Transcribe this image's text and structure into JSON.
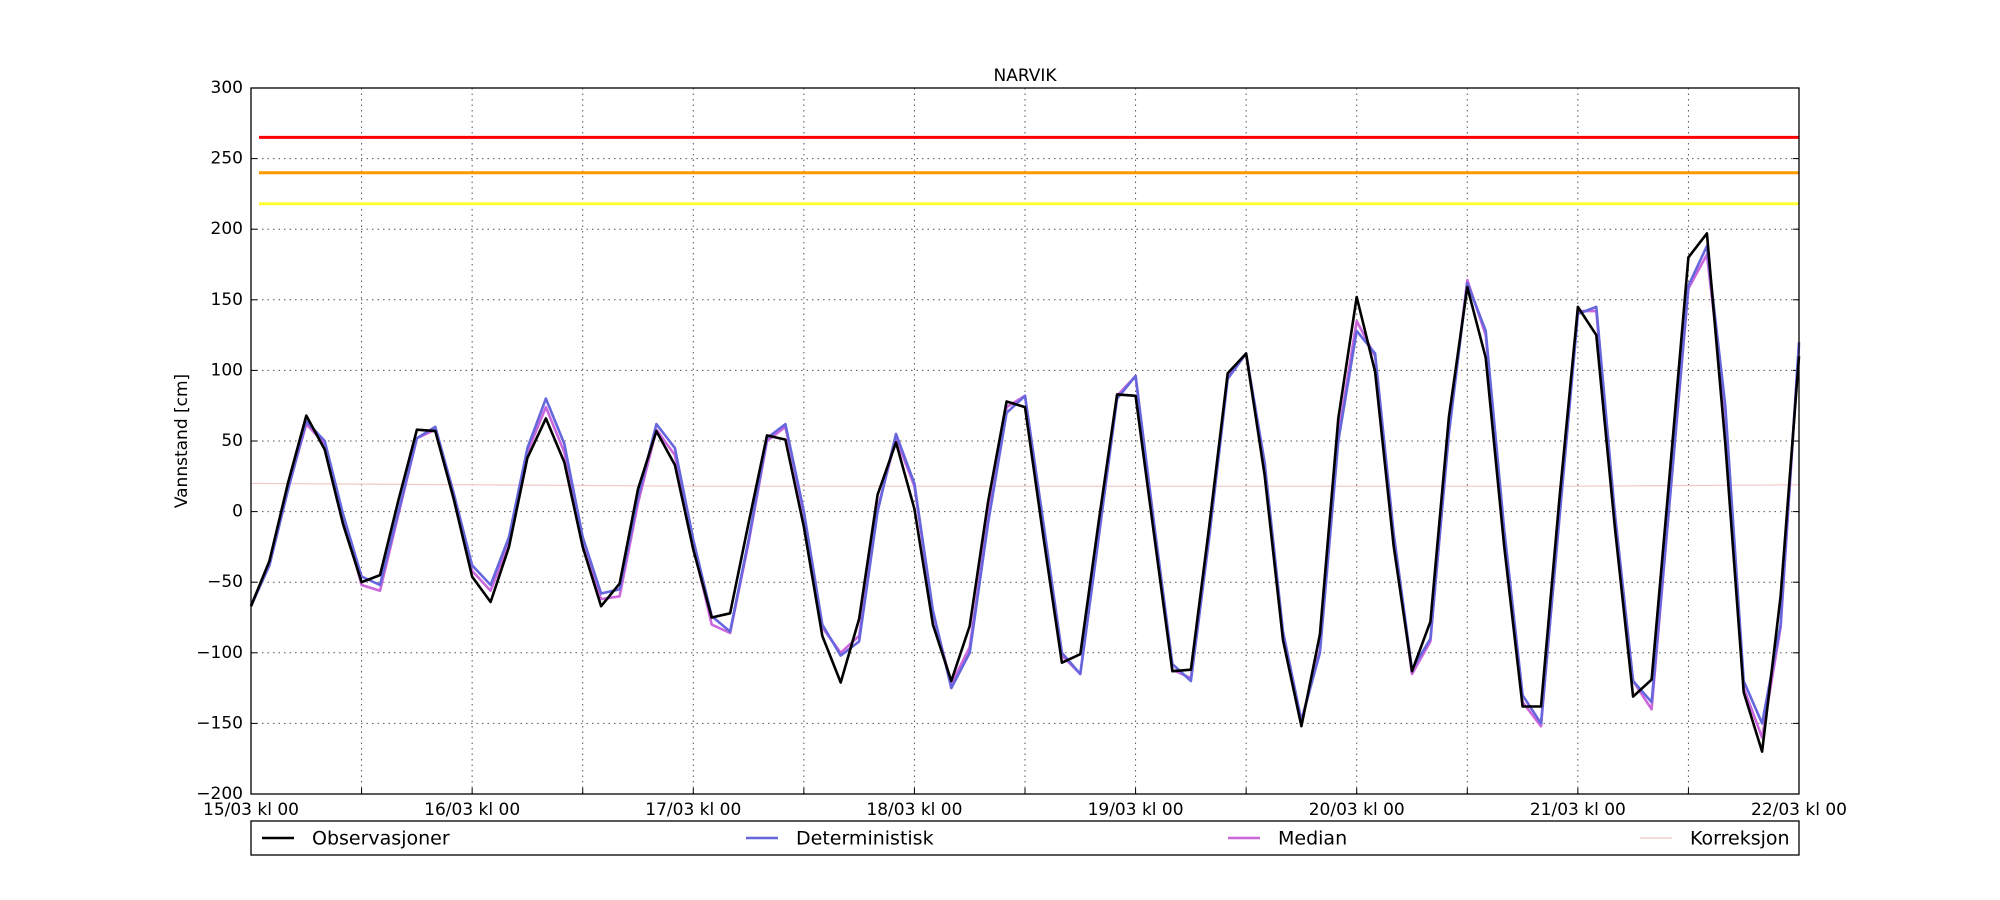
{
  "chart_data": {
    "type": "line",
    "title": "NARVIK",
    "y_label": "Vannstand [cm]",
    "x": [
      0,
      2,
      4,
      6,
      8,
      10,
      12,
      14,
      16,
      18,
      20,
      22,
      24,
      26,
      28,
      30,
      32,
      34,
      36,
      38,
      40,
      42,
      44,
      46,
      48,
      50,
      52,
      54,
      56,
      58,
      60,
      62,
      64,
      66,
      68,
      70,
      72,
      74,
      76,
      78,
      80,
      82,
      84,
      86,
      88,
      90,
      92,
      94,
      96,
      98,
      100,
      102,
      104,
      106,
      108,
      110,
      112,
      114,
      116,
      118,
      120,
      122,
      124,
      126,
      128,
      130,
      132,
      134,
      136,
      138,
      140,
      142,
      144,
      146,
      148,
      150,
      152,
      154,
      156,
      158,
      160,
      162,
      164,
      166,
      168
    ],
    "series": [
      {
        "name": "Observasjoner",
        "color": "#000000",
        "values": [
          -67,
          -35,
          20,
          68,
          44,
          -9,
          -50,
          -45,
          8,
          58,
          57,
          9,
          -46,
          -64,
          -25,
          38,
          66,
          35,
          -25,
          -67,
          -51,
          16,
          57,
          33,
          -27,
          -75,
          -72,
          -8,
          54,
          51,
          -11,
          -88,
          -121,
          -76,
          12,
          49,
          2,
          -80,
          -120,
          -81,
          7,
          78,
          74,
          -18,
          -107,
          -101,
          -7,
          83,
          82,
          -16,
          -113,
          -112,
          -10,
          98,
          112,
          26,
          -91,
          -152,
          -87,
          66,
          152,
          99,
          -24,
          -113,
          -78,
          67,
          159,
          109,
          -24,
          -138,
          -138,
          9,
          145,
          125,
          -10,
          -131,
          -119,
          29,
          180,
          197,
          48,
          -128,
          -170,
          -60,
          110
        ]
      },
      {
        "name": "Deterministisk",
        "color": "#6666dd",
        "values": [
          -67,
          -38,
          15,
          64,
          50,
          -2,
          -46,
          -52,
          0,
          52,
          60,
          13,
          -38,
          -52,
          -18,
          45,
          80,
          48,
          -18,
          -58,
          -55,
          10,
          62,
          45,
          -20,
          -74,
          -85,
          -20,
          52,
          62,
          0,
          -80,
          -102,
          -92,
          0,
          55,
          20,
          -70,
          -125,
          -100,
          -8,
          70,
          82,
          -8,
          -100,
          -115,
          -18,
          80,
          96,
          -8,
          -108,
          -120,
          -18,
          94,
          112,
          35,
          -85,
          -148,
          -100,
          50,
          128,
          112,
          -15,
          -112,
          -90,
          55,
          162,
          128,
          -12,
          -130,
          -150,
          -5,
          140,
          145,
          0,
          -120,
          -135,
          10,
          160,
          188,
          75,
          -120,
          -150,
          -80,
          120
        ]
      },
      {
        "name": "Median",
        "color": "#cc66dd",
        "values": [
          -66,
          -38,
          16,
          62,
          48,
          -4,
          -52,
          -56,
          -2,
          52,
          58,
          10,
          -42,
          -56,
          -22,
          42,
          74,
          42,
          -22,
          -62,
          -60,
          6,
          58,
          40,
          -24,
          -80,
          -86,
          -22,
          50,
          60,
          -2,
          -82,
          -100,
          -88,
          2,
          52,
          18,
          -72,
          -122,
          -96,
          -4,
          74,
          82,
          -10,
          -102,
          -115,
          -18,
          82,
          96,
          -10,
          -112,
          -118,
          -14,
          96,
          112,
          32,
          -90,
          -148,
          -98,
          54,
          135,
          110,
          -18,
          -115,
          -92,
          58,
          164,
          125,
          -15,
          -135,
          -152,
          -2,
          142,
          142,
          -5,
          -120,
          -140,
          10,
          158,
          182,
          70,
          -125,
          -160,
          -82,
          118
        ]
      },
      {
        "name": "Korreksjon",
        "color": "#f4c6c6",
        "x": [
          0,
          24,
          48,
          72,
          96,
          120,
          144,
          168
        ],
        "values": [
          20,
          19,
          18,
          18,
          18,
          18,
          18,
          19
        ]
      }
    ],
    "thresholds": [
      {
        "value": 265,
        "color": "#ff0000"
      },
      {
        "value": 240,
        "color": "#ff9900"
      },
      {
        "value": 218,
        "color": "#ffff33"
      }
    ],
    "xlim": [
      0,
      168
    ],
    "xticks": [
      {
        "value": 0,
        "label": "15/03 kl 00"
      },
      {
        "value": 24,
        "label": "16/03 kl 00"
      },
      {
        "value": 48,
        "label": "17/03 kl 00"
      },
      {
        "value": 72,
        "label": "18/03 kl 00"
      },
      {
        "value": 96,
        "label": "19/03 kl 00"
      },
      {
        "value": 120,
        "label": "20/03 kl 00"
      },
      {
        "value": 144,
        "label": "21/03 kl 00"
      },
      {
        "value": 168,
        "label": "22/03 kl 00"
      }
    ],
    "xminor": [
      12,
      36,
      60,
      84,
      108,
      132,
      156
    ],
    "ylim": [
      -200,
      300
    ],
    "yticks": [
      {
        "value": -200,
        "label": "−200"
      },
      {
        "value": -150,
        "label": "−150"
      },
      {
        "value": -100,
        "label": "−100"
      },
      {
        "value": -50,
        "label": "−50"
      },
      0,
      50,
      100,
      150,
      200,
      250,
      300
    ],
    "grid": true,
    "legend": "bottom"
  }
}
